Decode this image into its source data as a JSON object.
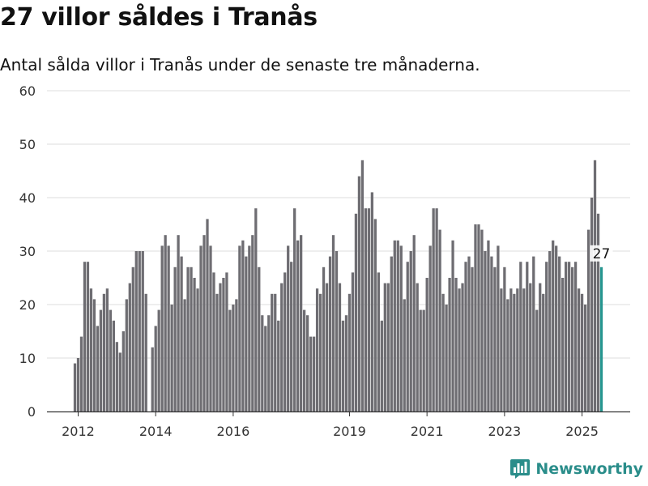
{
  "header": {
    "title": "27 villor såldes i Tranås",
    "subtitle": "Antal sålda villor i Tranås under de senaste tre månaderna."
  },
  "brand": {
    "name": "Newsworthy",
    "icon": "bar-chart-logo-icon",
    "color": "#2a8d8a"
  },
  "chart_data": {
    "type": "bar",
    "title": "27 villor såldes i Tranås",
    "subtitle": "Antal sålda villor i Tranås under de senaste tre månaderna.",
    "xlabel": "",
    "ylabel": "",
    "ylim": [
      0,
      60
    ],
    "yticks": [
      0,
      10,
      20,
      30,
      40,
      50,
      60
    ],
    "xticks": [
      {
        "label": "2012",
        "index": 1
      },
      {
        "label": "2014",
        "index": 25
      },
      {
        "label": "2016",
        "index": 49
      },
      {
        "label": "2019",
        "index": 85
      },
      {
        "label": "2021",
        "index": 109
      },
      {
        "label": "2023",
        "index": 133
      },
      {
        "label": "2025",
        "index": 157
      }
    ],
    "grid": true,
    "bar_color": "#6e6d72",
    "highlight_color": "#26958f",
    "highlight_index": 163,
    "annotation": {
      "index": 163,
      "text": "27"
    },
    "values": [
      9,
      10,
      14,
      28,
      28,
      23,
      21,
      16,
      19,
      22,
      23,
      19,
      17,
      13,
      11,
      15,
      21,
      24,
      27,
      30,
      30,
      30,
      22,
      0,
      12,
      16,
      19,
      31,
      33,
      31,
      20,
      27,
      33,
      29,
      21,
      27,
      27,
      25,
      23,
      31,
      33,
      36,
      31,
      26,
      22,
      24,
      25,
      26,
      19,
      20,
      21,
      31,
      32,
      29,
      31,
      33,
      38,
      27,
      18,
      16,
      18,
      22,
      22,
      17,
      24,
      26,
      31,
      28,
      38,
      32,
      33,
      19,
      18,
      14,
      14,
      23,
      22,
      27,
      24,
      29,
      33,
      30,
      24,
      17,
      18,
      22,
      26,
      37,
      44,
      47,
      38,
      38,
      41,
      36,
      26,
      17,
      24,
      24,
      29,
      32,
      32,
      31,
      21,
      28,
      30,
      33,
      24,
      19,
      19,
      25,
      31,
      38,
      38,
      34,
      22,
      20,
      25,
      32,
      25,
      23,
      24,
      28,
      29,
      27,
      35,
      35,
      34,
      30,
      32,
      29,
      27,
      31,
      23,
      27,
      21,
      23,
      22,
      23,
      28,
      23,
      28,
      24,
      29,
      19,
      24,
      22,
      28,
      30,
      32,
      31,
      29,
      25,
      28,
      28,
      27,
      28,
      23,
      22,
      20,
      34,
      40,
      47,
      37,
      27
    ]
  }
}
